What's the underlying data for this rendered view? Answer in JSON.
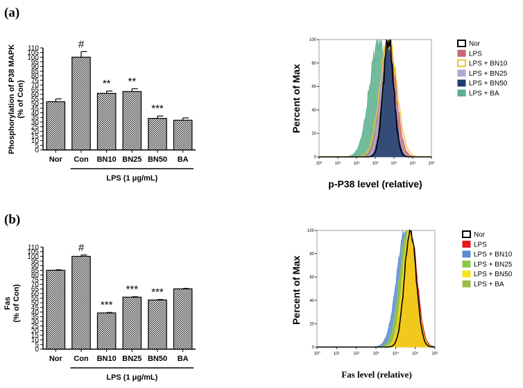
{
  "panels": [
    {
      "label": "(a)",
      "bar_chart": {
        "type": "bar",
        "ylabel_lines": [
          "Phosphorylation of P38 MAPK",
          "(% of Con)"
        ],
        "categories": [
          "Nor",
          "Con",
          "BN10",
          "BN25",
          "BN50",
          "BA"
        ],
        "values": [
          52,
          100,
          61,
          63,
          34,
          32
        ],
        "errors": [
          3,
          6,
          2.5,
          3,
          2.5,
          2.5
        ],
        "annotations": [
          "",
          "#",
          "**",
          "**",
          "***",
          ""
        ],
        "ylim": [
          0,
          110
        ],
        "yticks": [
          0,
          5,
          10,
          15,
          20,
          25,
          30,
          35,
          40,
          45,
          50,
          55,
          60,
          65,
          70,
          75,
          80,
          85,
          90,
          95,
          100,
          105,
          110
        ],
        "group_label": "LPS (1 μg/mL)",
        "group_range": [
          1,
          5
        ]
      },
      "histogram": {
        "type": "area",
        "ylabel": "Percent of Max",
        "xlabel": "p-P38 level (relative)",
        "yticks": [
          "0",
          "20",
          "40",
          "60",
          "80",
          "100"
        ],
        "xticks": [
          "10⁰",
          "10¹",
          "10²",
          "10³",
          "10⁴",
          "10⁵",
          "10⁶"
        ],
        "xscale": "log",
        "xlim": [
          0,
          6
        ],
        "ylim": [
          0,
          100
        ],
        "series": [
          {
            "name": "Nor",
            "color": "#000000",
            "style": "outline",
            "peak": 3.7,
            "width": 0.28
          },
          {
            "name": "LPS",
            "color": "#c96a72",
            "style": "fill",
            "peak": 3.7,
            "width": 0.4
          },
          {
            "name": "LPS + BN10",
            "color": "#f2c12e",
            "style": "outline",
            "peak": 3.7,
            "width": 0.45
          },
          {
            "name": "LPS + BN25",
            "color": "#b3a6cf",
            "style": "fill",
            "peak": 3.65,
            "width": 0.35
          },
          {
            "name": "LPS + BN50",
            "color": "#1f3d6b",
            "style": "fill",
            "peak": 3.7,
            "width": 0.3
          },
          {
            "name": "LPS + BA",
            "color": "#5aaf8c",
            "style": "fill",
            "peak": 3.2,
            "width": 0.5
          }
        ]
      }
    },
    {
      "label": "(b)",
      "bar_chart": {
        "type": "bar",
        "ylabel_lines": [
          "Fas",
          "(% of Con)"
        ],
        "categories": [
          "Nor",
          "Con",
          "BN10",
          "BN25",
          "BN50",
          "BA"
        ],
        "values": [
          85,
          100,
          39,
          56,
          53,
          65
        ],
        "errors": [
          0.5,
          1.5,
          0.5,
          0.5,
          0.5,
          0.5
        ],
        "annotations": [
          "",
          "#",
          "***",
          "***",
          "***",
          ""
        ],
        "ylim": [
          0,
          110
        ],
        "yticks": [
          0,
          5,
          10,
          15,
          20,
          25,
          30,
          35,
          40,
          45,
          50,
          55,
          60,
          65,
          70,
          75,
          80,
          85,
          90,
          95,
          100,
          105,
          110
        ],
        "group_label": "LPS (1 μg/mL)",
        "group_range": [
          1,
          5
        ]
      },
      "histogram": {
        "type": "area",
        "ylabel": "Percent of Max",
        "xlabel": "Fas level (relative)",
        "yticks": [
          "0",
          "20",
          "40",
          "60",
          "80",
          "100"
        ],
        "xticks": [
          "10⁰",
          "10¹",
          "10²",
          "10³",
          "10⁴",
          "10⁵",
          "10⁶"
        ],
        "xscale": "log",
        "xlim": [
          0,
          6
        ],
        "ylim": [
          0,
          100
        ],
        "series": [
          {
            "name": "Nor",
            "color": "#000000",
            "style": "outline",
            "peak": 4.75,
            "width": 0.3
          },
          {
            "name": "LPS",
            "color": "#e8191d",
            "style": "fill",
            "peak": 4.75,
            "width": 0.35
          },
          {
            "name": "LPS + BN10",
            "color": "#5b8ad1",
            "style": "fill",
            "peak": 4.5,
            "width": 0.45
          },
          {
            "name": "LPS + BN25",
            "color": "#8cc84a",
            "style": "fill",
            "peak": 4.6,
            "width": 0.4
          },
          {
            "name": "LPS + BN50",
            "color": "#f5e41c",
            "style": "fill",
            "peak": 4.7,
            "width": 0.35
          },
          {
            "name": "LPS + BA",
            "color": "#9bbd4a",
            "style": "fill",
            "peak": 4.65,
            "width": 0.38
          }
        ]
      }
    }
  ]
}
